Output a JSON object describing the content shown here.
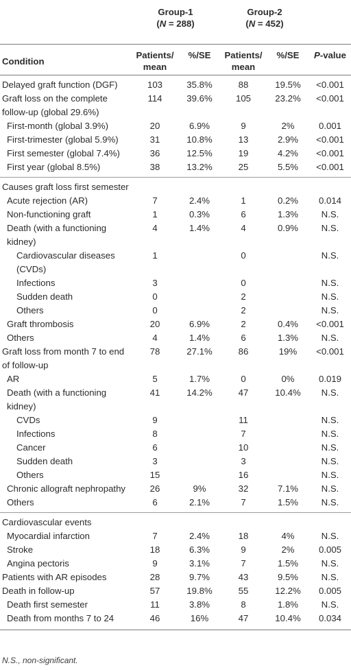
{
  "header": {
    "group1_title": "Group-1",
    "group1_n_prefix": "(N",
    "group1_n_suffix": " = 288)",
    "group2_title": "Group-2",
    "group2_n_prefix": "(N",
    "group2_n_suffix": " = 452)",
    "col_condition": "Condition",
    "col_patients_line1": "Patients/",
    "col_patients_line2": "mean",
    "col_pct": "%/SE",
    "col_p_italic": "P",
    "col_p_rest": "-value"
  },
  "rows": [
    {
      "label": "Delayed graft function (DGF)",
      "indent": 0,
      "g1": "103",
      "g1p": "35.8%",
      "g2": "88",
      "g2p": "19.5%",
      "p": "<0.001"
    },
    {
      "label": "Graft loss on the complete follow-up (global 29.6%)",
      "indent": 0,
      "g1": "114",
      "g1p": "39.6%",
      "g2": "105",
      "g2p": "23.2%",
      "p": "<0.001"
    },
    {
      "label": "First-month (global 3.9%)",
      "indent": 1,
      "g1": "20",
      "g1p": "6.9%",
      "g2": "9",
      "g2p": "2%",
      "p": "0.001"
    },
    {
      "label": "First-trimester (global 5.9%)",
      "indent": 1,
      "g1": "31",
      "g1p": "10.8%",
      "g2": "13",
      "g2p": "2.9%",
      "p": "<0.001"
    },
    {
      "label": "First semester (global 7.4%)",
      "indent": 1,
      "g1": "36",
      "g1p": "12.5%",
      "g2": "19",
      "g2p": "4.2%",
      "p": "<0.001"
    },
    {
      "label": "First year (global 8.5%)",
      "indent": 1,
      "g1": "38",
      "g1p": "13.2%",
      "g2": "25",
      "g2p": "5.5%",
      "p": "<0.001"
    },
    {
      "label": "Causes graft loss first semester",
      "indent": 0,
      "g1": "",
      "g1p": "",
      "g2": "",
      "g2p": "",
      "p": "",
      "divider": true
    },
    {
      "label": "Acute rejection (AR)",
      "indent": 1,
      "g1": "7",
      "g1p": "2.4%",
      "g2": "1",
      "g2p": "0.2%",
      "p": "0.014"
    },
    {
      "label": "Non-functioning graft",
      "indent": 1,
      "g1": "1",
      "g1p": "0.3%",
      "g2": "6",
      "g2p": "1.3%",
      "p": "N.S."
    },
    {
      "label": "Death (with a functioning kidney)",
      "indent": 1,
      "g1": "4",
      "g1p": "1.4%",
      "g2": "4",
      "g2p": "0.9%",
      "p": "N.S."
    },
    {
      "label": "Cardiovascular diseases (CVDs)",
      "indent": 2,
      "g1": "1",
      "g1p": "",
      "g2": "0",
      "g2p": "",
      "p": "N.S."
    },
    {
      "label": "Infections",
      "indent": 2,
      "g1": "3",
      "g1p": "",
      "g2": "0",
      "g2p": "",
      "p": "N.S."
    },
    {
      "label": "Sudden death",
      "indent": 2,
      "g1": "0",
      "g1p": "",
      "g2": "2",
      "g2p": "",
      "p": "N.S."
    },
    {
      "label": "Others",
      "indent": 2,
      "g1": "0",
      "g1p": "",
      "g2": "2",
      "g2p": "",
      "p": "N.S."
    },
    {
      "label": "Graft thrombosis",
      "indent": 1,
      "g1": "20",
      "g1p": "6.9%",
      "g2": "2",
      "g2p": "0.4%",
      "p": "<0.001"
    },
    {
      "label": "Others",
      "indent": 1,
      "g1": "4",
      "g1p": "1.4%",
      "g2": "6",
      "g2p": "1.3%",
      "p": "N.S."
    },
    {
      "label": "Graft loss from month 7 to end of follow-up",
      "indent": 0,
      "g1": "78",
      "g1p": "27.1%",
      "g2": "86",
      "g2p": "19%",
      "p": "<0.001"
    },
    {
      "label": "AR",
      "indent": 1,
      "g1": "5",
      "g1p": "1.7%",
      "g2": "0",
      "g2p": "0%",
      "p": "0.019"
    },
    {
      "label": "Death (with a functioning kidney)",
      "indent": 1,
      "g1": "41",
      "g1p": "14.2%",
      "g2": "47",
      "g2p": "10.4%",
      "p": "N.S."
    },
    {
      "label": "CVDs",
      "indent": 2,
      "g1": "9",
      "g1p": "",
      "g2": "11",
      "g2p": "",
      "p": "N.S."
    },
    {
      "label": "Infections",
      "indent": 2,
      "g1": "8",
      "g1p": "",
      "g2": "7",
      "g2p": "",
      "p": "N.S."
    },
    {
      "label": "Cancer",
      "indent": 2,
      "g1": "6",
      "g1p": "",
      "g2": "10",
      "g2p": "",
      "p": "N.S."
    },
    {
      "label": "Sudden death",
      "indent": 2,
      "g1": "3",
      "g1p": "",
      "g2": "3",
      "g2p": "",
      "p": "N.S."
    },
    {
      "label": "Others",
      "indent": 2,
      "g1": "15",
      "g1p": "",
      "g2": "16",
      "g2p": "",
      "p": "N.S."
    },
    {
      "label": "Chronic allograft nephropathy",
      "indent": 1,
      "g1": "26",
      "g1p": "9%",
      "g2": "32",
      "g2p": "7.1%",
      "p": "N.S."
    },
    {
      "label": "Others",
      "indent": 1,
      "g1": "6",
      "g1p": "2.1%",
      "g2": "7",
      "g2p": "1.5%",
      "p": "N.S."
    },
    {
      "label": "Cardiovascular events",
      "indent": 0,
      "g1": "",
      "g1p": "",
      "g2": "",
      "g2p": "",
      "p": "",
      "divider": true
    },
    {
      "label": "Myocardial infarction",
      "indent": 1,
      "g1": "7",
      "g1p": "2.4%",
      "g2": "18",
      "g2p": "4%",
      "p": "N.S."
    },
    {
      "label": "Stroke",
      "indent": 1,
      "g1": "18",
      "g1p": "6.3%",
      "g2": "9",
      "g2p": "2%",
      "p": "0.005"
    },
    {
      "label": "Angina pectoris",
      "indent": 1,
      "g1": "9",
      "g1p": "3.1%",
      "g2": "7",
      "g2p": "1.5%",
      "p": "N.S."
    },
    {
      "label": "Patients with AR episodes",
      "indent": 0,
      "g1": "28",
      "g1p": "9.7%",
      "g2": "43",
      "g2p": "9.5%",
      "p": "N.S."
    },
    {
      "label": "Death in follow-up",
      "indent": 0,
      "g1": "57",
      "g1p": "19.8%",
      "g2": "55",
      "g2p": "12.2%",
      "p": "0.005"
    },
    {
      "label": "Death first semester",
      "indent": 1,
      "g1": "11",
      "g1p": "3.8%",
      "g2": "8",
      "g2p": "1.8%",
      "p": "N.S."
    },
    {
      "label": "Death from months 7 to 24",
      "indent": 1,
      "g1": "46",
      "g1p": "16%",
      "g2": "47",
      "g2p": "10.4%",
      "p": "0.034"
    }
  ],
  "footnote": "N.S., non-significant."
}
